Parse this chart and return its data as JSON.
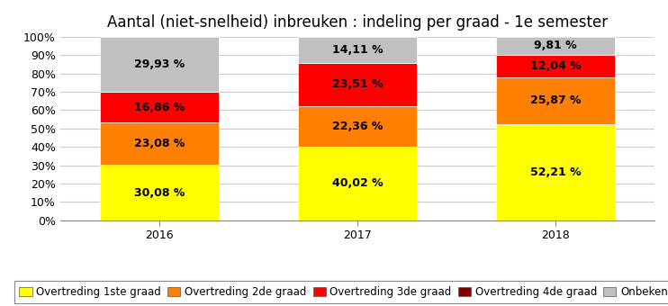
{
  "title": "Aantal (niet-snelheid) inbreuken : indeling per graad - 1e semester",
  "categories": [
    "2016",
    "2017",
    "2018"
  ],
  "series": {
    "Overtreding 1ste graad": [
      30.08,
      40.02,
      52.21
    ],
    "Overtreding 2de graad": [
      23.08,
      22.36,
      25.87
    ],
    "Overtreding 3de graad": [
      16.86,
      23.51,
      12.04
    ],
    "Overtreding 4de graad": [
      0.05,
      0.0,
      0.07
    ],
    "Onbekend/nvt": [
      29.93,
      14.11,
      9.81
    ]
  },
  "colors": {
    "Overtreding 1ste graad": "#FFFF00",
    "Overtreding 2de graad": "#FF8000",
    "Overtreding 3de graad": "#FF0000",
    "Overtreding 4de graad": "#800000",
    "Onbekend/nvt": "#C0C0C0"
  },
  "ylim": [
    0,
    100
  ],
  "yticks": [
    0,
    10,
    20,
    30,
    40,
    50,
    60,
    70,
    80,
    90,
    100
  ],
  "ytick_labels": [
    "0%",
    "10%",
    "20%",
    "30%",
    "40%",
    "50%",
    "60%",
    "70%",
    "80%",
    "90%",
    "100%"
  ],
  "bar_width": 0.6,
  "background_color": "#FFFFFF",
  "grid_color": "#CCCCCC",
  "title_fontsize": 12,
  "tick_fontsize": 9,
  "legend_fontsize": 8.5,
  "label_fontsize": 9
}
